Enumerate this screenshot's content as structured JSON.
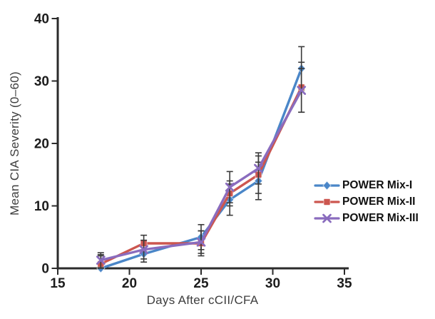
{
  "chart_data": {
    "type": "line",
    "title": "",
    "xlabel": "Days After cCII/CFA",
    "ylabel": "Mean CIA Severity (0–60)",
    "xlim": [
      15,
      35
    ],
    "ylim": [
      0,
      40
    ],
    "x_ticks": [
      15,
      20,
      25,
      30,
      35
    ],
    "y_ticks": [
      0,
      10,
      20,
      30,
      40
    ],
    "grid": false,
    "legend_position": "right",
    "axis_color": "#2b2b2b",
    "error_bar_color": "#3a3a3a",
    "tick_label_color": "#1c1c1c",
    "axis_label_color": "#3d3d3d",
    "x": [
      18,
      21,
      25,
      27,
      29,
      32
    ],
    "series": [
      {
        "name": "POWER Mix-I",
        "color": "#4a86c8",
        "marker": "diamond",
        "values": [
          0,
          2.3,
          5,
          11,
          14,
          32
        ],
        "err_plus": [
          2,
          1.3,
          2,
          2.5,
          3,
          3.5
        ],
        "err_minus": [
          0,
          1.3,
          2,
          2.5,
          3,
          3.5
        ]
      },
      {
        "name": "POWER Mix-II",
        "color": "#cc564f",
        "marker": "square",
        "values": [
          0.7,
          4,
          4,
          12,
          15,
          29
        ],
        "err_plus": [
          1.5,
          1.3,
          2,
          2,
          3,
          4
        ],
        "err_minus": [
          0.7,
          1.3,
          2,
          2,
          3,
          4
        ]
      },
      {
        "name": "POWER Mix-III",
        "color": "#8a6cbe",
        "marker": "x",
        "values": [
          1.3,
          3,
          4.2,
          13,
          16,
          28.5
        ],
        "err_plus": [
          1.2,
          1.5,
          1.8,
          2.5,
          2.5,
          3.5
        ],
        "err_minus": [
          1.2,
          1.5,
          1.8,
          2.5,
          2.5,
          3.5
        ]
      }
    ]
  }
}
